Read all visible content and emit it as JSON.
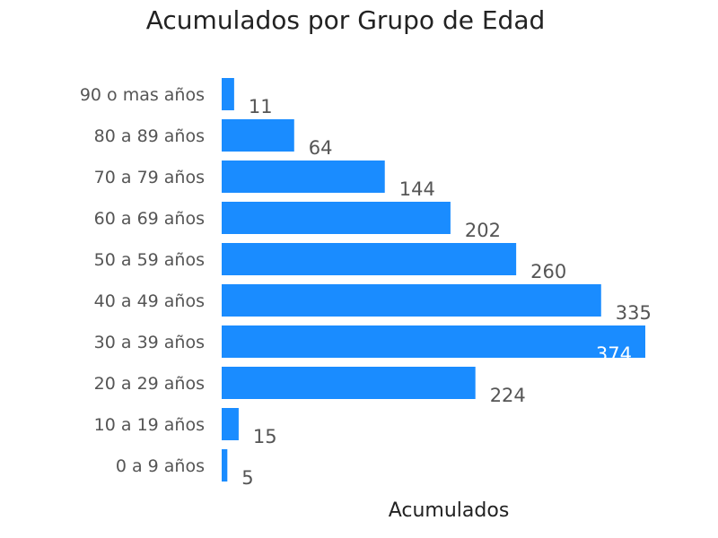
{
  "chart_data": {
    "type": "bar",
    "orientation": "horizontal",
    "title": "Acumulados por Grupo de Edad",
    "xlabel": "Acumulados",
    "ylabel": "",
    "categories": [
      "90 o mas años",
      "80 a 89 años",
      "70 a 79 años",
      "60 a 69 años",
      "50 a 59 años",
      "40 a 49 años",
      "30 a 39 años",
      "20 a 29 años",
      "10 a 19 años",
      "0 a 9 años"
    ],
    "values": [
      11,
      64,
      144,
      202,
      260,
      335,
      374,
      224,
      15,
      5
    ],
    "xlim": [
      0,
      374
    ],
    "grid": false,
    "legend": "none",
    "bar_color": "#1a8cff"
  }
}
